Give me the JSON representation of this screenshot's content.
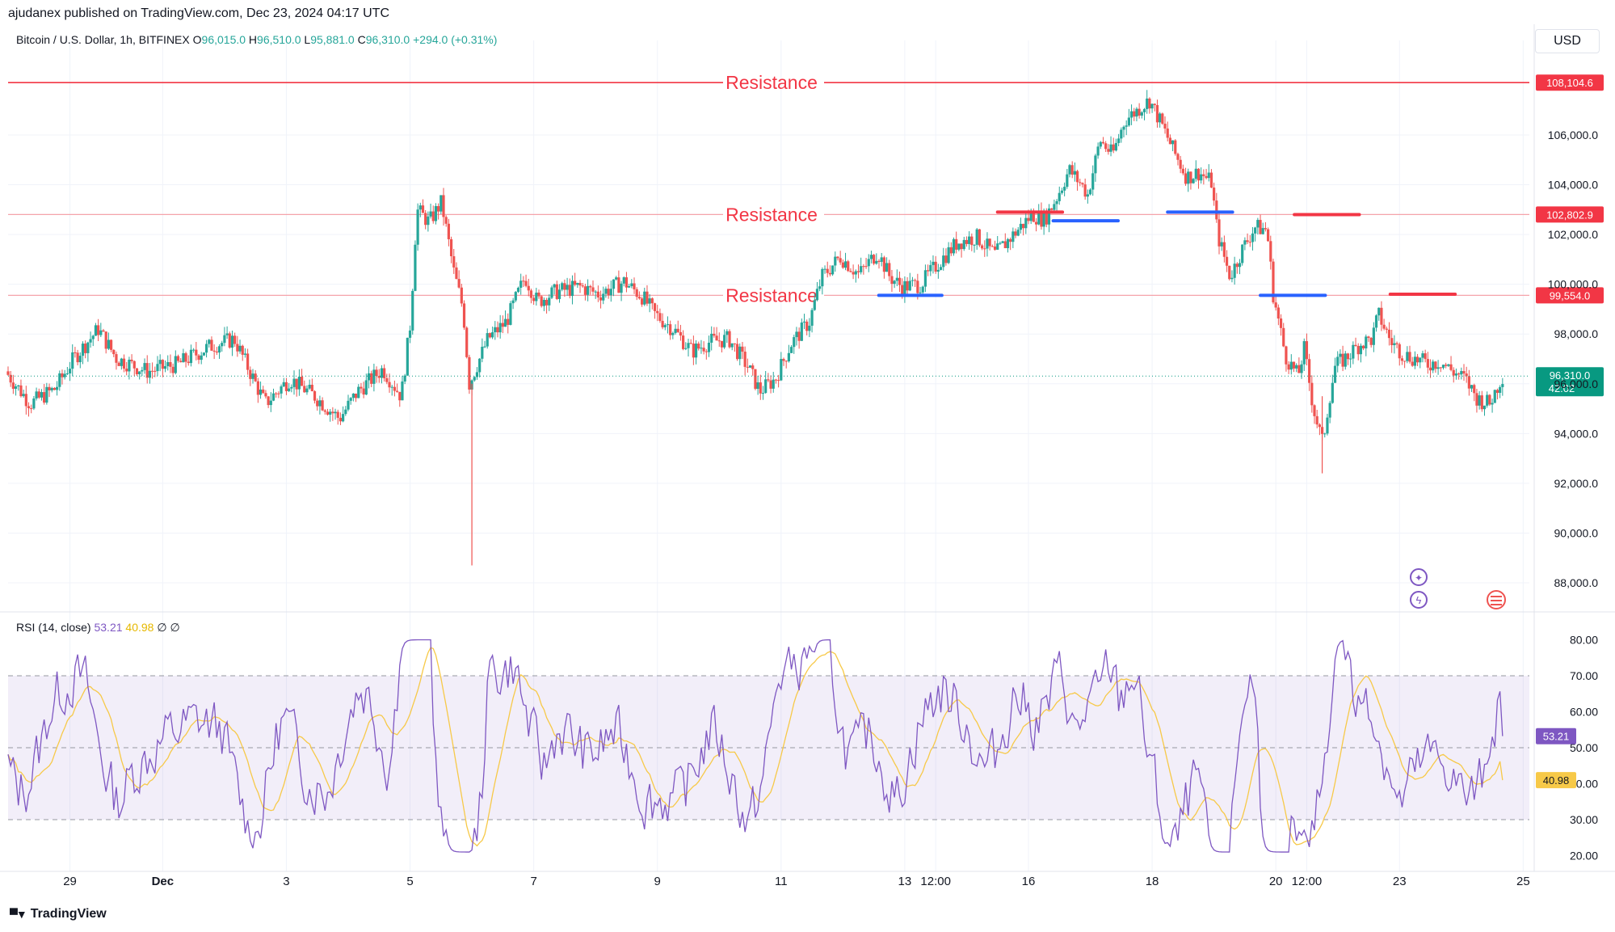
{
  "header": {
    "published": "ajudanex published on TradingView.com, Dec 23, 2024 04:17 UTC",
    "symbol": "Bitcoin / U.S. Dollar, 1h, BITFINEX",
    "ohlc": [
      {
        "label": "O",
        "value": "96,015.0"
      },
      {
        "label": "H",
        "value": "96,510.0"
      },
      {
        "label": "L",
        "value": "95,881.0"
      },
      {
        "label": "C",
        "value": "96,310.0"
      }
    ],
    "change": "+294.0 (+0.31%)",
    "currency": "USD"
  },
  "footer": {
    "brand": "TradingView"
  },
  "colors": {
    "up": "#26a69a",
    "down": "#ef5350",
    "resistance": "#f23645",
    "rsi": "#7e57c2",
    "rsi_ma": "#f7c948",
    "support_marker": "#2962ff",
    "price_tag": "#089981"
  },
  "chart_data": [
    {
      "type": "candlestick",
      "title": "Bitcoin / U.S. Dollar, 1h, BITFINEX",
      "ylim": [
        87000,
        109000
      ],
      "y_ticks": [
        88000,
        90000,
        92000,
        94000,
        96000,
        98000,
        100000,
        102000,
        104000,
        106000
      ],
      "y_tick_labels": [
        "88,000.0",
        "90,000.0",
        "92,000.0",
        "94,000.0",
        "96,000.0",
        "98,000.0",
        "100,000.0",
        "102,000.0",
        "104,000.0",
        "106,000.0"
      ],
      "x_labels": [
        {
          "t": 1.5,
          "label": "29"
        },
        {
          "t": 3.0,
          "label": "Dec"
        },
        {
          "t": 5.0,
          "label": "3"
        },
        {
          "t": 7.0,
          "label": "5"
        },
        {
          "t": 9.0,
          "label": "7"
        },
        {
          "t": 11.0,
          "label": "9"
        },
        {
          "t": 13.0,
          "label": "11"
        },
        {
          "t": 15.0,
          "label": "13"
        },
        {
          "t": 15.5,
          "label": "12:00"
        },
        {
          "t": 17.0,
          "label": "16"
        },
        {
          "t": 19.0,
          "label": "18"
        },
        {
          "t": 21.0,
          "label": "20"
        },
        {
          "t": 21.5,
          "label": "12:00"
        },
        {
          "t": 23.0,
          "label": "23"
        },
        {
          "t": 25.0,
          "label": "25"
        }
      ],
      "x_range": [
        0.5,
        25.1
      ],
      "price_path": [
        [
          0.5,
          96500
        ],
        [
          0.9,
          95200
        ],
        [
          1.3,
          95800
        ],
        [
          1.6,
          97000
        ],
        [
          2.0,
          98200
        ],
        [
          2.3,
          97000
        ],
        [
          2.8,
          96500
        ],
        [
          3.3,
          96800
        ],
        [
          3.8,
          97500
        ],
        [
          4.2,
          97800
        ],
        [
          4.7,
          95200
        ],
        [
          5.1,
          96200
        ],
        [
          5.5,
          95500
        ],
        [
          5.9,
          94600
        ],
        [
          6.2,
          95700
        ],
        [
          6.6,
          96600
        ],
        [
          6.9,
          95500
        ],
        [
          7.05,
          98500
        ],
        [
          7.15,
          103000
        ],
        [
          7.35,
          102500
        ],
        [
          7.55,
          103300
        ],
        [
          7.75,
          100500
        ],
        [
          7.9,
          99000
        ],
        [
          8.0,
          96000
        ],
        [
          8.3,
          97800
        ],
        [
          8.6,
          98500
        ],
        [
          8.9,
          100300
        ],
        [
          9.1,
          99300
        ],
        [
          9.4,
          99700
        ],
        [
          9.8,
          99900
        ],
        [
          10.1,
          99600
        ],
        [
          10.5,
          100100
        ],
        [
          10.8,
          99500
        ],
        [
          11.0,
          98800
        ],
        [
          11.3,
          98200
        ],
        [
          11.6,
          97300
        ],
        [
          11.9,
          97700
        ],
        [
          12.2,
          97800
        ],
        [
          12.5,
          96700
        ],
        [
          12.7,
          95700
        ],
        [
          12.95,
          96200
        ],
        [
          13.2,
          97600
        ],
        [
          13.5,
          98500
        ],
        [
          13.7,
          100300
        ],
        [
          14.0,
          101100
        ],
        [
          14.3,
          100400
        ],
        [
          14.6,
          101300
        ],
        [
          14.8,
          100300
        ],
        [
          15.0,
          99900
        ],
        [
          15.3,
          100000
        ],
        [
          15.6,
          100900
        ],
        [
          15.9,
          101700
        ],
        [
          16.2,
          101900
        ],
        [
          16.5,
          101200
        ],
        [
          16.8,
          102000
        ],
        [
          17.1,
          102800
        ],
        [
          17.3,
          102600
        ],
        [
          17.5,
          103500
        ],
        [
          17.7,
          104600
        ],
        [
          17.9,
          104000
        ],
        [
          18.0,
          103600
        ],
        [
          18.2,
          105800
        ],
        [
          18.4,
          105200
        ],
        [
          18.6,
          106600
        ],
        [
          18.8,
          107000
        ],
        [
          19.0,
          107400
        ],
        [
          19.2,
          106400
        ],
        [
          19.4,
          105300
        ],
        [
          19.6,
          104300
        ],
        [
          19.8,
          104500
        ],
        [
          20.0,
          104100
        ],
        [
          20.1,
          102000
        ],
        [
          20.3,
          100300
        ],
        [
          20.5,
          101400
        ],
        [
          20.7,
          102300
        ],
        [
          20.9,
          102200
        ],
        [
          21.0,
          99600
        ],
        [
          21.2,
          97100
        ],
        [
          21.4,
          96300
        ],
        [
          21.5,
          97400
        ],
        [
          21.65,
          95000
        ],
        [
          21.8,
          93600
        ],
        [
          21.9,
          95300
        ],
        [
          22.0,
          96700
        ],
        [
          22.2,
          97100
        ],
        [
          22.4,
          97600
        ],
        [
          22.6,
          97800
        ],
        [
          22.7,
          98800
        ],
        [
          22.9,
          97700
        ],
        [
          23.1,
          97200
        ],
        [
          23.3,
          97000
        ],
        [
          23.5,
          96800
        ],
        [
          23.7,
          96900
        ],
        [
          23.9,
          96500
        ],
        [
          24.1,
          96200
        ],
        [
          24.3,
          95400
        ],
        [
          24.5,
          95200
        ],
        [
          24.7,
          96310
        ]
      ],
      "last_price": 96310.0,
      "resistance_lines": [
        {
          "price": 108104.6,
          "label": "Resistance",
          "tag": "108,104.6"
        },
        {
          "price": 102802.9,
          "label": "Resistance",
          "tag": "102,802.9"
        },
        {
          "price": 99554.0,
          "label": "Resistance",
          "tag": "99,554.0"
        }
      ],
      "last_price_tag": {
        "price": "96,310.0",
        "countdown": "42:02"
      },
      "support_markers": [
        {
          "t0": 14.58,
          "t1": 15.6,
          "price": 99554
        },
        {
          "t0": 17.4,
          "t1": 18.45,
          "price": 102550
        },
        {
          "t0": 19.25,
          "t1": 20.3,
          "price": 102900
        },
        {
          "t0": 20.75,
          "t1": 21.8,
          "price": 99554
        }
      ],
      "resistance_markers": [
        {
          "t0": 16.5,
          "t1": 17.55,
          "price": 102900
        },
        {
          "t0": 21.3,
          "t1": 22.35,
          "price": 102800
        },
        {
          "t0": 22.85,
          "t1": 23.9,
          "price": 99600
        }
      ]
    },
    {
      "type": "line",
      "title": "RSI (14, close)",
      "legend_values": [
        "53.21",
        "40.98"
      ],
      "legend_extras": [
        "∅",
        "∅"
      ],
      "ylim": [
        18,
        82
      ],
      "y_ticks": [
        20,
        30,
        40,
        50,
        60,
        70,
        80
      ],
      "y_tick_labels": [
        "20.00",
        "30.00",
        "40.00",
        "50.00",
        "60.00",
        "70.00",
        "80.00"
      ],
      "band": [
        30,
        70
      ],
      "midline": 50,
      "rsi_last": 53.21,
      "rsi_ma_last": 40.98
    }
  ]
}
